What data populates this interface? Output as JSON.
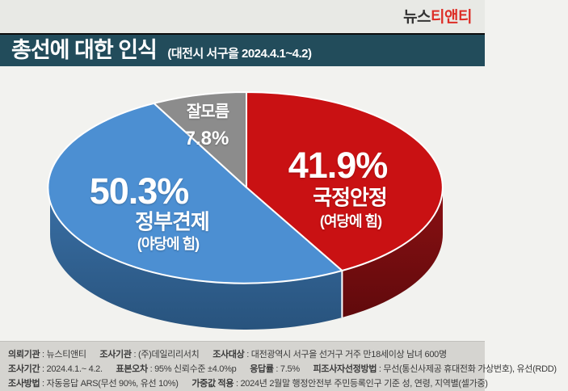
{
  "logo": {
    "prefix": "뉴스",
    "suffix": "티앤티"
  },
  "header": {
    "title": "총선에 대한 인식",
    "subtitle": "(대전시 서구을 2024.4.1~4.2)"
  },
  "chart_data": {
    "type": "pie",
    "style": "3d",
    "direction": "clockwise",
    "start_angle": "12 o'clock",
    "title": "총선에 대한 인식",
    "subtitle": "(대전시 서구을 2024.4.1~4.2)",
    "slices": [
      {
        "label": "국정안정",
        "sublabel": "(여당에 힘)",
        "value": 41.9,
        "value_label": "41.9%",
        "color": "#c91113",
        "side_top": "#8c1013",
        "side_bottom": "#600a0c"
      },
      {
        "label": "정부견제",
        "sublabel": "(야당에 힘)",
        "value": 50.3,
        "value_label": "50.3%",
        "color": "#4c8fd2",
        "side_top": "#3a70a6",
        "side_bottom": "#28537d"
      },
      {
        "label": "잘모름",
        "sublabel": "",
        "value": 7.8,
        "value_label": "7.8%",
        "color": "#8c8c8c",
        "side_top": "#6e6e6e",
        "side_bottom": "#5a5a5a"
      }
    ]
  },
  "colors": {
    "title_bar_bg": "#224c5b",
    "logo_red": "#dd2d26",
    "page_bg": "#f2f2ef",
    "footnote_bg": "#d5d4d0"
  },
  "footnote": {
    "lines": [
      {
        "items": [
          {
            "label": "의뢰기관",
            "value": " : 뉴스티앤티"
          },
          {
            "label": "조사기관",
            "value": " : (주)데일리리서치"
          },
          {
            "label": "조사대상",
            "value": " : 대전광역시 서구을 선거구 거주 만18세이상 남녀 600명"
          }
        ]
      },
      {
        "items": [
          {
            "label": "조사기간",
            "value": " : 2024.4.1.~ 4.2."
          },
          {
            "label": "표본오차",
            "value": " : 95% 신뢰수준 ±4.0%p"
          },
          {
            "label": "응답률",
            "value": " : 7.5%"
          },
          {
            "label": "피조사자선정방법",
            "value": " : 무선(통신사제공 휴대전화 가상번호), 유선(RDD)"
          }
        ]
      },
      {
        "items": [
          {
            "label": "조사방법",
            "value": " : 자동응답 ARS(무선 90%, 유선 10%)"
          },
          {
            "label": "가중값 적용",
            "value": " : 2024년 2월말 행정안전부 주민등록인구 기준 성, 연령, 지역별(셀가중)"
          }
        ]
      }
    ]
  }
}
